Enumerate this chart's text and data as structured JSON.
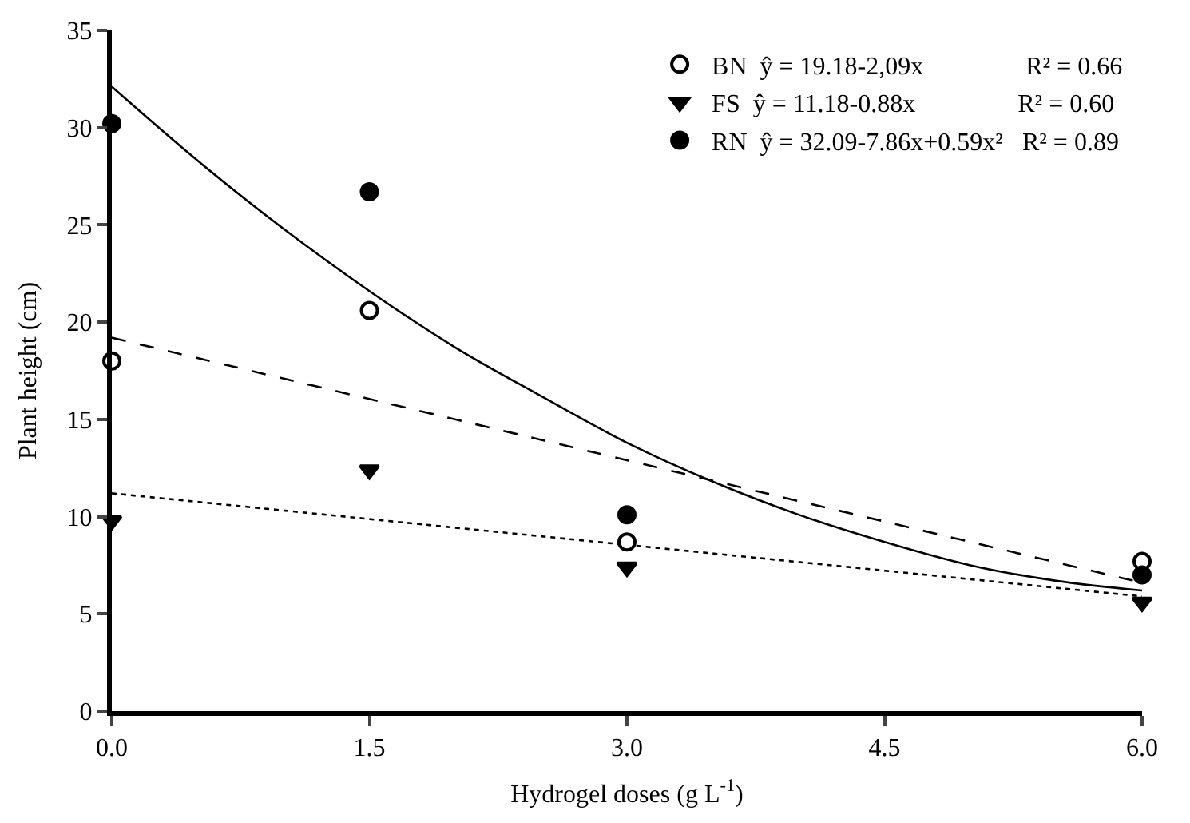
{
  "chart_data": {
    "type": "scatter",
    "xlabel": "Hydrogel doses (g L$^{-1}$)",
    "ylabel": "Plant height (cm)",
    "xlim": [
      0,
      6
    ],
    "xticks": [
      {
        "value": 0,
        "label": "0.0"
      },
      {
        "value": 1.5,
        "label": "1.5"
      },
      {
        "value": 3,
        "label": "3.0"
      },
      {
        "value": 4.5,
        "label": "4.5"
      },
      {
        "value": 6,
        "label": "6.0"
      }
    ],
    "ylim": [
      0,
      35
    ],
    "yticks": [
      0,
      5,
      10,
      15,
      20,
      25,
      30,
      35
    ],
    "legend": "top right",
    "series": [
      {
        "name": "BN  ŷ = 19.18-2,09x                R² = 0.66",
        "marker": "circle",
        "color": "#ffffff",
        "x": [
          0,
          1.5,
          3,
          6
        ],
        "values": [
          18.0,
          20.6,
          8.7,
          7.7
        ]
      },
      {
        "name": "FS  ŷ = 11.18-0.88x                R² = 0.60",
        "marker": "triangle",
        "color": "#000000",
        "x": [
          0,
          1.5,
          3,
          6
        ],
        "values": [
          9.8,
          12.4,
          7.4,
          5.6
        ]
      },
      {
        "name": "RN  ŷ = 32.09-7.86x+0.59x²   R² = 0.89",
        "marker": "circle",
        "color": "#000000",
        "x": [
          0,
          1.5,
          3,
          6
        ],
        "values": [
          30.2,
          26.7,
          10.1,
          7.0
        ]
      },
      {
        "type": "line",
        "line_style": "dashed",
        "color": "#000000",
        "x": [
          0,
          6
        ],
        "values": [
          19.2,
          6.6
        ]
      },
      {
        "type": "line",
        "line_style": "dotted",
        "color": "#000000",
        "x": [
          0,
          6
        ],
        "values": [
          11.2,
          5.9
        ]
      },
      {
        "type": "line",
        "line_style": "solid",
        "color": "#000000",
        "x": [
          0,
          0.5,
          1,
          1.5,
          2,
          2.5,
          3,
          3.5,
          4,
          4.5,
          5,
          5.5,
          6
        ],
        "values": [
          32.1,
          28.3,
          24.8,
          21.6,
          18.7,
          16.2,
          13.8,
          11.8,
          10.1,
          8.7,
          7.5,
          6.7,
          6.2
        ]
      }
    ]
  }
}
